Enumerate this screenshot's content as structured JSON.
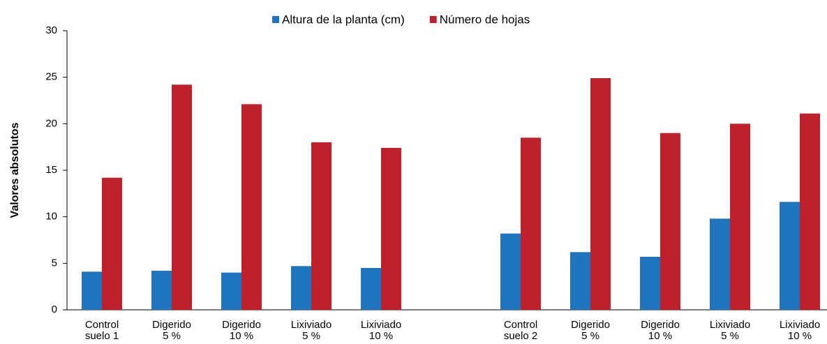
{
  "chart_data": {
    "type": "bar",
    "y_label": "Valores absolutos",
    "categories": [
      [
        "Control",
        "suelo 1"
      ],
      [
        "Digerido",
        "5 %"
      ],
      [
        "Digerido",
        "10 %"
      ],
      [
        "Lixiviado",
        "5 %"
      ],
      [
        "Lixiviado",
        "10 %"
      ],
      null,
      [
        "Control",
        "suelo 2"
      ],
      [
        "Digerido",
        "5 %"
      ],
      [
        "Digerido",
        "10 %"
      ],
      [
        "Lixiviado",
        "5 %"
      ],
      [
        "Lixiviado",
        "10 %"
      ]
    ],
    "series": [
      {
        "name": "Altura de la planta (cm)",
        "color": "#1f74c0",
        "values": [
          4.1,
          4.2,
          4.0,
          4.7,
          4.5,
          null,
          8.2,
          6.2,
          5.7,
          9.8,
          11.6
        ]
      },
      {
        "name": "Número de hojas",
        "color": "#c0202a",
        "values": [
          14.2,
          24.2,
          22.1,
          18.0,
          17.4,
          null,
          18.5,
          24.9,
          19.0,
          20.0,
          21.1
        ]
      }
    ],
    "ylim": [
      0,
      30
    ],
    "yticks": [
      0,
      5,
      10,
      15,
      20,
      25,
      30
    ],
    "grid": false,
    "legend": "top"
  }
}
